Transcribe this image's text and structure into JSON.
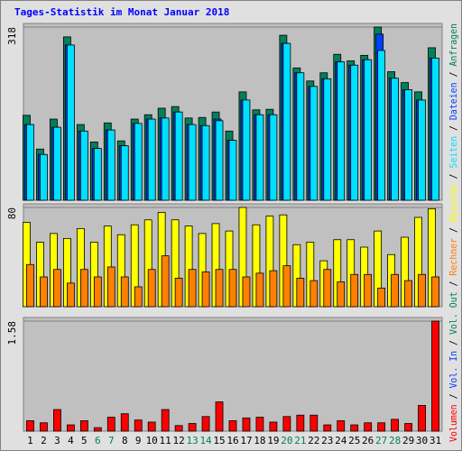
{
  "title": "Tages-Statistik im Monat Januar 2018",
  "legend_separator": " / ",
  "chart_data": [
    {
      "type": "bar",
      "ylim": [
        0,
        318
      ],
      "yticks": [
        318
      ],
      "series": [
        {
          "name": "Anfragen",
          "color": "#00805c",
          "values": [
            156,
            94,
            149,
            300,
            139,
            107,
            142,
            109,
            149,
            157,
            169,
            172,
            151,
            152,
            162,
            127,
            199,
            166,
            167,
            303,
            243,
            219,
            234,
            268,
            256,
            266,
            318,
            236,
            216,
            199,
            280
          ]
        },
        {
          "name": "Dateien",
          "color": "#0040ff",
          "values": [
            139,
            84,
            134,
            285,
            127,
            95,
            129,
            100,
            141,
            149,
            151,
            162,
            139,
            137,
            149,
            110,
            184,
            157,
            157,
            288,
            234,
            209,
            223,
            254,
            248,
            258,
            305,
            224,
            203,
            184,
            261
          ]
        },
        {
          "name": "Seiten",
          "color": "#00e0ff",
          "values": [
            139,
            84,
            134,
            285,
            127,
            95,
            129,
            100,
            141,
            149,
            151,
            162,
            139,
            137,
            146,
            110,
            184,
            157,
            157,
            288,
            234,
            209,
            223,
            254,
            248,
            258,
            275,
            224,
            203,
            184,
            261
          ]
        }
      ]
    },
    {
      "type": "bar",
      "ylim": [
        0,
        80
      ],
      "yticks": [
        80
      ],
      "series": [
        {
          "name": "Besuche",
          "color": "#ffff00",
          "values": [
            68,
            52,
            59,
            55,
            63,
            52,
            65,
            58,
            66,
            70,
            76,
            70,
            65,
            59,
            67,
            61,
            80,
            66,
            73,
            74,
            50,
            52,
            37,
            54,
            54,
            48,
            61,
            42,
            56,
            72,
            79
          ]
        },
        {
          "name": "Rechner",
          "color": "#ff8000",
          "values": [
            34,
            24,
            30,
            19,
            30,
            24,
            32,
            24,
            16,
            30,
            41,
            23,
            30,
            28,
            30,
            30,
            24,
            27,
            29,
            33,
            23,
            21,
            30,
            20,
            26,
            26,
            15,
            26,
            21,
            26,
            24
          ]
        }
      ]
    },
    {
      "type": "bar",
      "ylim": [
        0,
        1.58
      ],
      "yticks": [
        1.58
      ],
      "categories": [
        "1",
        "2",
        "3",
        "4",
        "5",
        "6",
        "7",
        "8",
        "9",
        "10",
        "11",
        "12",
        "13",
        "14",
        "15",
        "16",
        "17",
        "18",
        "19",
        "20",
        "21",
        "22",
        "23",
        "24",
        "25",
        "26",
        "27",
        "28",
        "29",
        "30",
        "31"
      ],
      "highlight": [
        "6",
        "7",
        "13",
        "14",
        "20",
        "21",
        "27",
        "28"
      ],
      "highlight_color": "#00805c",
      "series": [
        {
          "name": "Volumen",
          "color": "#ff0000",
          "values": [
            0.15,
            0.12,
            0.31,
            0.09,
            0.15,
            0.05,
            0.2,
            0.25,
            0.16,
            0.13,
            0.31,
            0.08,
            0.11,
            0.21,
            0.42,
            0.15,
            0.19,
            0.2,
            0.13,
            0.21,
            0.23,
            0.23,
            0.09,
            0.15,
            0.09,
            0.12,
            0.12,
            0.17,
            0.11,
            0.37,
            1.58
          ]
        }
      ],
      "legend": [
        {
          "name": "Vol. In",
          "color": "#0040ff"
        },
        {
          "name": "Vol. Out",
          "color": "#00805c"
        }
      ]
    }
  ]
}
